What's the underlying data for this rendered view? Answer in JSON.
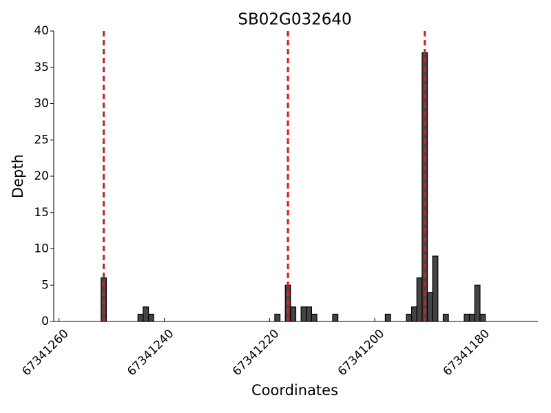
{
  "chart_data": {
    "type": "bar",
    "title": "SB02G032640",
    "x_label": "Coordinates",
    "y_label": "Depth",
    "x": [
      67341251.5,
      67341244.5,
      67341243.5,
      67341242.5,
      67341218.5,
      67341216.5,
      67341215.5,
      67341213.5,
      67341212.5,
      67341211.5,
      67341207.5,
      67341197.5,
      67341193.5,
      67341192.5,
      67341191.5,
      67341190.5,
      67341189.5,
      67341188.5,
      67341186.5,
      67341182.5,
      67341181.5,
      67341180.5,
      67341179.5
    ],
    "values": [
      6,
      1,
      2,
      1,
      1,
      5,
      2,
      2,
      2,
      1,
      1,
      1,
      1,
      2,
      6,
      37,
      4,
      9,
      1,
      1,
      1,
      5,
      1
    ],
    "color": "#444444",
    "vlines": [
      67341251.5,
      67341216.5,
      67341190.5
    ],
    "vline_color": "#e8141a",
    "xlim": [
      67341261,
      67341169
    ],
    "xticks": [
      67341260,
      67341240,
      67341220,
      67341200,
      67341180
    ],
    "ylim": [
      0,
      40
    ],
    "yticks": [
      0,
      5,
      10,
      15,
      20,
      25,
      30,
      35,
      40
    ]
  }
}
